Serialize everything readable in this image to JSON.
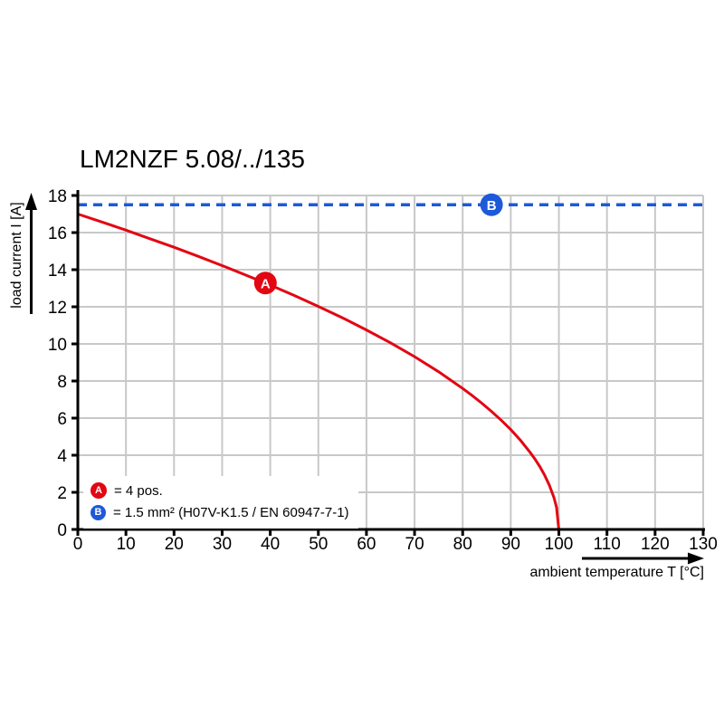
{
  "title": "LM2NZF 5.08/../135",
  "axes": {
    "x_label": "ambient temperature T [°C]",
    "y_label": "load current I [A]"
  },
  "legend": {
    "a_letter": "A",
    "a_label": "= 4 pos.",
    "b_letter": "B",
    "b_label": "= 1.5 mm² (H07V-K1.5 / EN 60947-7-1)"
  },
  "colors": {
    "curve_red": "#e30613",
    "line_blue": "#1d59d8",
    "grid": "#c8c8c8",
    "axis": "#000000",
    "marker_text": "#ffffff"
  },
  "chart_data": {
    "type": "line",
    "title": "LM2NZF 5.08/../135",
    "xlabel": "ambient temperature T [°C]",
    "ylabel": "load current I [A]",
    "xlim": [
      0,
      130
    ],
    "ylim": [
      0,
      18
    ],
    "x_ticks": [
      0,
      10,
      20,
      30,
      40,
      50,
      60,
      70,
      80,
      90,
      100,
      110,
      120,
      130
    ],
    "y_ticks": [
      0,
      2,
      4,
      6,
      8,
      10,
      12,
      14,
      16,
      18
    ],
    "grid": true,
    "legend_position": "bottom-left-inside",
    "series": [
      {
        "name": "A",
        "description": "4 pos.",
        "style": "solid",
        "color": "#e30613",
        "x": [
          0,
          5,
          10,
          15,
          20,
          25,
          30,
          35,
          40,
          45,
          50,
          55,
          60,
          65,
          70,
          75,
          80,
          82,
          84,
          86,
          88,
          90,
          92,
          94,
          95,
          96,
          97,
          98,
          99,
          99.5,
          100
        ],
        "y": [
          17,
          16.57,
          16.13,
          15.67,
          15.21,
          14.72,
          14.22,
          13.7,
          13.17,
          12.61,
          12.02,
          11.41,
          10.75,
          10.06,
          9.31,
          8.5,
          7.6,
          7.21,
          6.8,
          6.36,
          5.89,
          5.38,
          4.81,
          4.16,
          3.8,
          3.4,
          2.94,
          2.4,
          1.7,
          1.2,
          0
        ]
      },
      {
        "name": "B",
        "description": "1.5 mm² (H07V-K1.5 / EN 60947-7-1)",
        "style": "dashed",
        "color": "#1d59d8",
        "constant_y": 17.5
      }
    ],
    "markers": [
      {
        "letter": "A",
        "x": 39,
        "y": 13.28,
        "color": "#e30613"
      },
      {
        "letter": "B",
        "x": 86,
        "y": 17.5,
        "color": "#1d59d8"
      }
    ]
  }
}
